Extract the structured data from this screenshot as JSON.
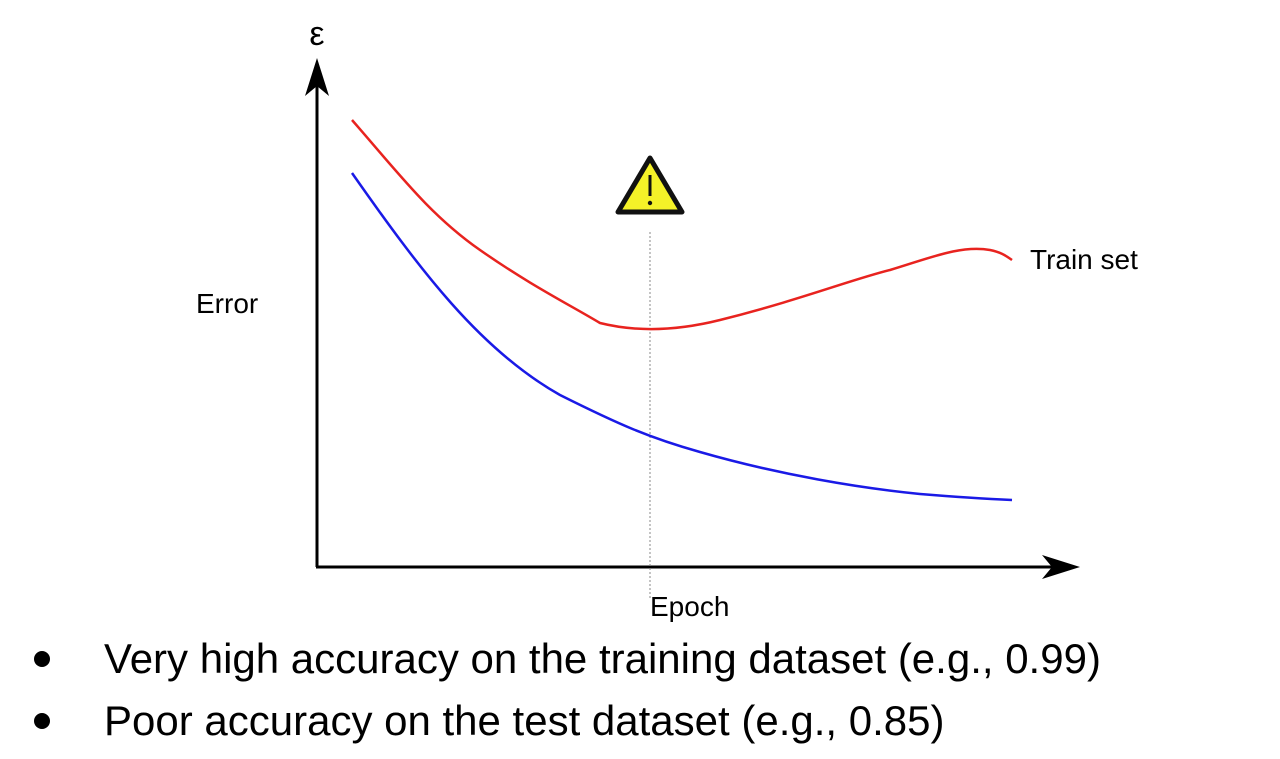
{
  "diagram": {
    "y_axis_symbol": "ε",
    "y_axis_label": "Error",
    "x_axis_label": "Epoch",
    "series_label": "Train set",
    "warning_icon": "warning-triangle-icon",
    "colors": {
      "red_curve": "#e8231f",
      "blue_curve": "#1a1ae6",
      "warning_fill": "#f5f228",
      "axes": "#000000",
      "marker_line": "#888888"
    }
  },
  "bullets": [
    {
      "text": "Very high accuracy on the training dataset (e.g., 0.99)"
    },
    {
      "text": "Poor accuracy on the test dataset (e.g., 0.85)"
    }
  ]
}
